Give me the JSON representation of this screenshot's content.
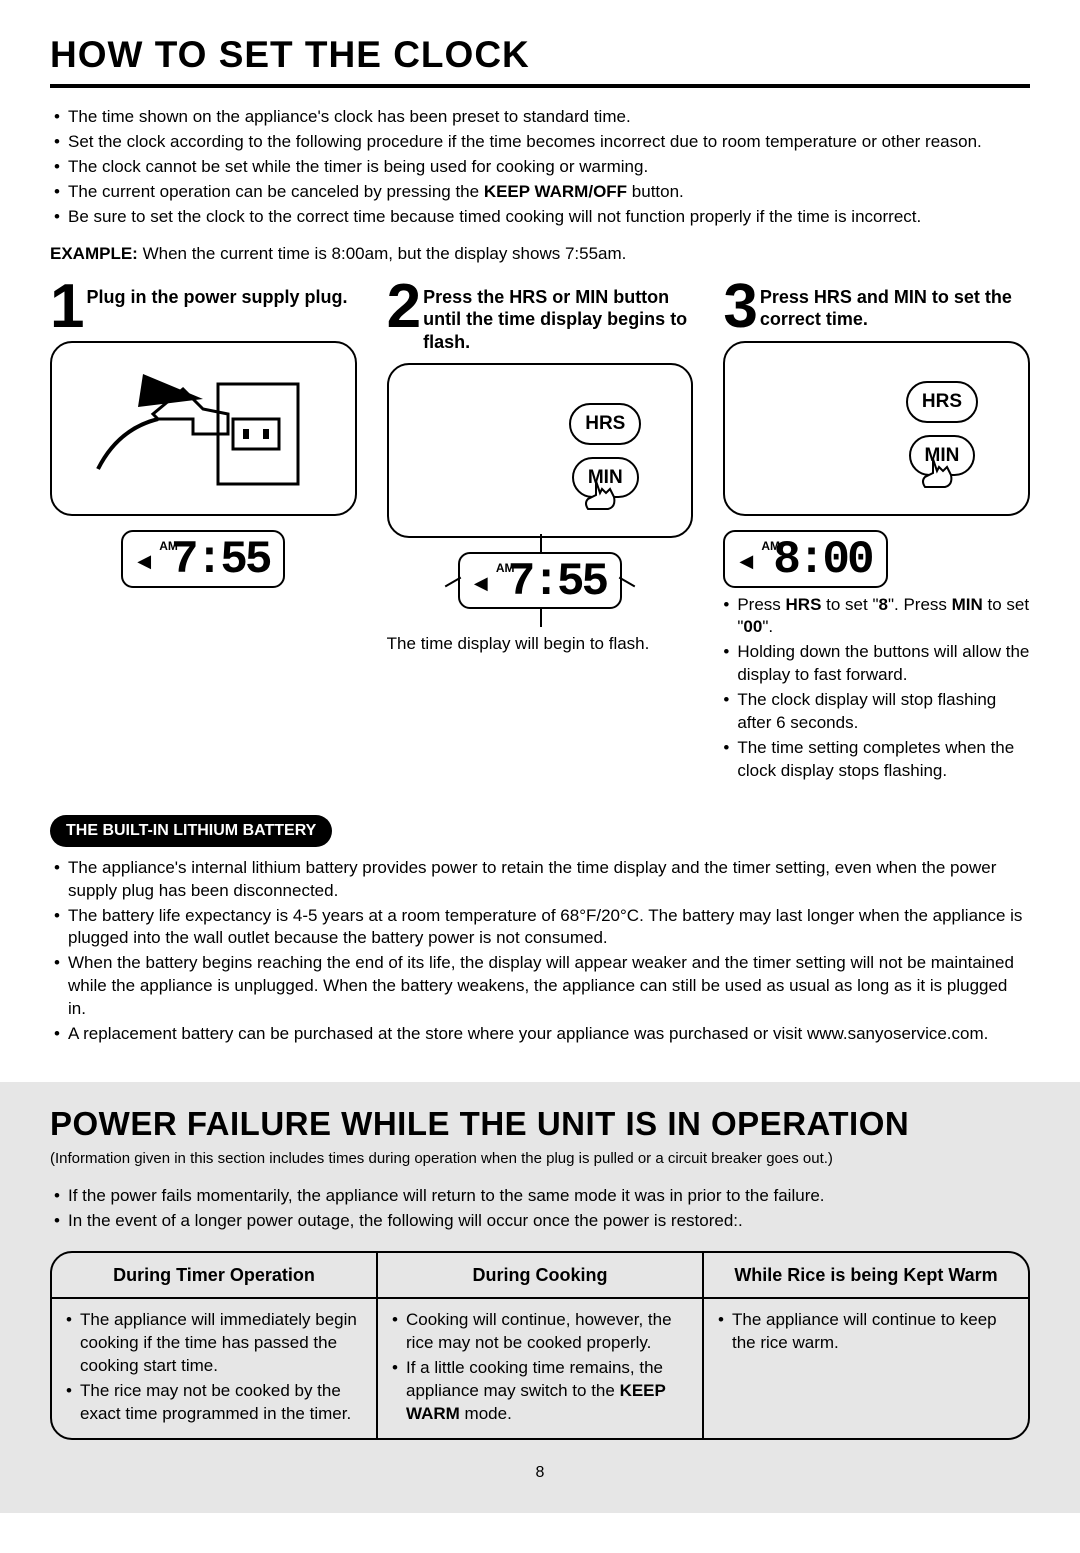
{
  "title_main": "HOW TO SET THE CLOCK",
  "intro_bullets": [
    "The time shown on the appliance's clock has been preset to standard time.",
    "Set the clock according to the following procedure if the time becomes incorrect due to room temperature or other reason.",
    "The clock cannot be set while the timer is being used for cooking or warming.",
    "The current operation can be canceled by pressing the <b>KEEP WARM/OFF</b> button.",
    "Be sure to set the clock to the correct time because timed cooking will not function properly if the time is incorrect."
  ],
  "example_label": "EXAMPLE:",
  "example_text": "When the current time is 8:00am, but the display shows 7:55am.",
  "steps": {
    "s1": {
      "num": "1",
      "title": "Plug in the power supply plug.",
      "am": "AM",
      "time": "7:55"
    },
    "s2": {
      "num": "2",
      "title": "Press the HRS or MIN button until the time display begins to flash.",
      "hrs": "HRS",
      "min": "MIN",
      "am": "AM",
      "time": "7:55",
      "note": "The time display will begin to flash."
    },
    "s3": {
      "num": "3",
      "title": "Press HRS and MIN to set the correct time.",
      "hrs": "HRS",
      "min": "MIN",
      "am": "AM",
      "time": "8:00",
      "bullets": [
        "Press <b>HRS</b> to set \"<b>8</b>\".  Press <b>MIN</b> to set \"<b>00</b>\".",
        "Holding down the buttons will allow the display to fast forward.",
        "The clock display will stop flashing after 6 seconds.",
        "The time setting completes when the clock display stops flashing."
      ]
    }
  },
  "battery_heading": "THE BUILT-IN LITHIUM BATTERY",
  "battery_bullets": [
    "The appliance's internal lithium battery provides power to retain the time display and the timer setting, even when the power supply plug has been disconnected.",
    "The battery life expectancy is 4-5 years at a room temperature of 68°F/20°C.  The battery may last  longer when the appliance is plugged into the wall outlet because the battery power is not consumed.",
    "When the battery begins reaching the end of its life, the display will appear weaker and the timer setting will not be maintained while the appliance is unplugged.  When the battery weakens, the appliance can still be used as usual as long as it is plugged in.",
    "A replacement battery can be purchased at the store where your appliance was purchased or visit www.sanyoservice.com."
  ],
  "pf_title": "POWER FAILURE WHILE THE UNIT IS IN OPERATION",
  "pf_sub": "(Information given in this section includes times during operation when the plug is pulled or a circuit breaker goes out.)",
  "pf_intro": [
    "If the power fails momentarily, the appliance will return to the same mode it was in prior to the failure.",
    "In the event of a longer power outage, the following will occur once the power is restored:."
  ],
  "pf_table": {
    "col1": {
      "head": "During Timer Operation",
      "items": [
        "The appliance will immediately begin cooking if the time has passed the cooking start time.",
        "The rice may not be cooked by the exact time programmed in the timer."
      ]
    },
    "col2": {
      "head": "During Cooking",
      "items": [
        "Cooking will continue, however, the rice may not be cooked properly.",
        "If a little cooking time remains, the appliance may switch to the <b>KEEP WARM</b> mode."
      ]
    },
    "col3": {
      "head": "While Rice is being Kept Warm",
      "items": [
        "The appliance will continue to keep the rice warm."
      ]
    }
  },
  "page_number": "8",
  "colors": {
    "bg": "#ffffff",
    "text": "#000000",
    "gray_bg": "#e6e6e6"
  }
}
